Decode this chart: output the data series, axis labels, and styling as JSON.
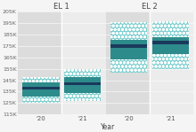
{
  "title_el1": "EL 1",
  "title_el2": "EL 2",
  "xlabel": "Year",
  "ylim": [
    115000,
    205000
  ],
  "yticks": [
    115000,
    125000,
    135000,
    145000,
    155000,
    165000,
    175000,
    185000,
    195000,
    205000
  ],
  "ytick_labels": [
    "115K",
    "125K",
    "135K",
    "145K",
    "155K",
    "165K",
    "175K",
    "185K",
    "195K",
    "205K"
  ],
  "el1": {
    "20": {
      "p10": 125000,
      "p25": 131000,
      "median": 138000,
      "p75": 143000,
      "p90": 148000
    },
    "21": {
      "p10": 127000,
      "p25": 134000,
      "median": 142000,
      "p75": 148000,
      "p90": 155000
    }
  },
  "el2": {
    "20": {
      "p10": 152000,
      "p25": 163000,
      "median": 175000,
      "p75": 180000,
      "p90": 196000
    },
    "21": {
      "p10": 155000,
      "p25": 168000,
      "median": 178000,
      "p75": 183000,
      "p90": 197000
    }
  },
  "color_median": "#1a3a5c",
  "color_iqr": "#2e8b8b",
  "color_whisker": "#7ecfcf",
  "color_bg_dark": "#dcdcdc",
  "color_bg_light": "#ececec",
  "color_fig_bg": "#f5f5f5",
  "bar_width": 0.88
}
